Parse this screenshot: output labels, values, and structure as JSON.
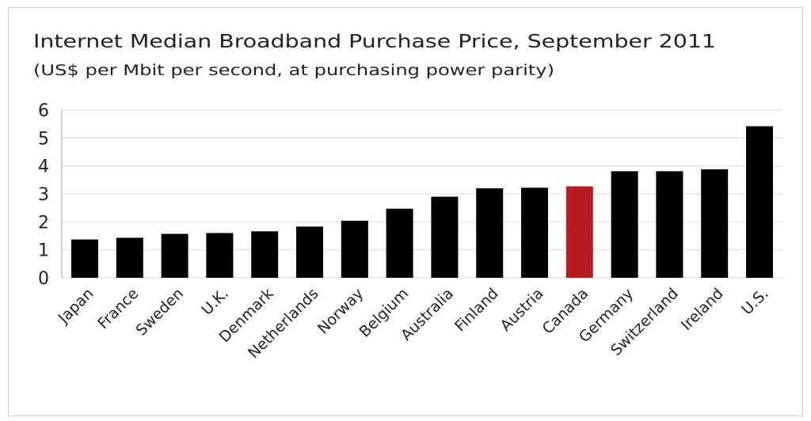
{
  "chart_data": {
    "type": "bar",
    "title": "Internet Median Broadband Purchase Price, September 2011",
    "subtitle": "(US$ per Mbit per second, at purchasing power parity)",
    "xlabel": "",
    "ylabel": "",
    "ylim": [
      0,
      6
    ],
    "yticks": [
      "0",
      "1",
      "2",
      "3",
      "4",
      "5",
      "6"
    ],
    "grid": true,
    "categories": [
      "Japan",
      "France",
      "Sweden",
      "U.K.",
      "Denmark",
      "Netherlands",
      "Norway",
      "Belgium",
      "Australia",
      "Finland",
      "Austria",
      "Canada",
      "Germany",
      "Switzerland",
      "Ireland",
      "U.S."
    ],
    "values": [
      1.37,
      1.43,
      1.57,
      1.6,
      1.66,
      1.83,
      2.04,
      2.47,
      2.9,
      3.2,
      3.22,
      3.27,
      3.81,
      3.81,
      3.88,
      5.42
    ],
    "colors": {
      "default": "#000000",
      "highlight": "#b71c20",
      "highlight_category": "Canada",
      "grid": "#e4e4e4",
      "text": "#222222"
    }
  }
}
